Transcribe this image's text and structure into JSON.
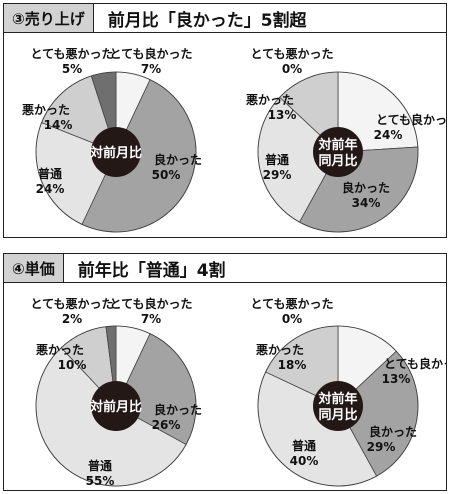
{
  "panels": [
    {
      "tag": "③売り上げ",
      "title": "前月比「良かった」5割超"
    },
    {
      "tag": "④単価",
      "title": "前年比「普通」4割"
    }
  ],
  "colors": {
    "very_good": "#f4f4f4",
    "good": "#a3a3a3",
    "normal": "#e4e4e4",
    "bad": "#cfcfcf",
    "very_bad": "#6f6f6f",
    "center": "#231815"
  },
  "chart_data": [
    {
      "type": "pie",
      "center_label": "対前月比",
      "slices": [
        {
          "label": "とても良かった",
          "value": 7,
          "pct": "7%",
          "color": "#f4f4f4"
        },
        {
          "label": "良かった",
          "value": 50,
          "pct": "50%",
          "color": "#a3a3a3"
        },
        {
          "label": "普通",
          "value": 24,
          "pct": "24%",
          "color": "#e4e4e4"
        },
        {
          "label": "悪かった",
          "value": 14,
          "pct": "14%",
          "color": "#cfcfcf"
        },
        {
          "label": "とても悪かった",
          "value": 5,
          "pct": "5%",
          "color": "#6f6f6f"
        }
      ]
    },
    {
      "type": "pie",
      "center_label": "対前年同月比",
      "slices": [
        {
          "label": "とても良かった",
          "value": 24,
          "pct": "24%",
          "color": "#f4f4f4"
        },
        {
          "label": "良かった",
          "value": 34,
          "pct": "34%",
          "color": "#a3a3a3"
        },
        {
          "label": "普通",
          "value": 29,
          "pct": "29%",
          "color": "#e4e4e4"
        },
        {
          "label": "悪かった",
          "value": 13,
          "pct": "13%",
          "color": "#cfcfcf"
        },
        {
          "label": "とても悪かった",
          "value": 0,
          "pct": "0%",
          "color": "#6f6f6f"
        }
      ]
    },
    {
      "type": "pie",
      "center_label": "対前月比",
      "slices": [
        {
          "label": "とても良かった",
          "value": 7,
          "pct": "7%",
          "color": "#f4f4f4"
        },
        {
          "label": "良かった",
          "value": 26,
          "pct": "26%",
          "color": "#a3a3a3"
        },
        {
          "label": "普通",
          "value": 55,
          "pct": "55%",
          "color": "#e4e4e4"
        },
        {
          "label": "悪かった",
          "value": 10,
          "pct": "10%",
          "color": "#cfcfcf"
        },
        {
          "label": "とても悪かった",
          "value": 2,
          "pct": "2%",
          "color": "#6f6f6f"
        }
      ]
    },
    {
      "type": "pie",
      "center_label": "対前年同月比",
      "slices": [
        {
          "label": "とても良かった",
          "value": 13,
          "pct": "13%",
          "color": "#f4f4f4"
        },
        {
          "label": "良かった",
          "value": 29,
          "pct": "29%",
          "color": "#a3a3a3"
        },
        {
          "label": "普通",
          "value": 40,
          "pct": "40%",
          "color": "#e4e4e4"
        },
        {
          "label": "悪かった",
          "value": 18,
          "pct": "18%",
          "color": "#cfcfcf"
        },
        {
          "label": "とても悪かった",
          "value": 0,
          "pct": "0%",
          "color": "#6f6f6f"
        }
      ]
    }
  ]
}
